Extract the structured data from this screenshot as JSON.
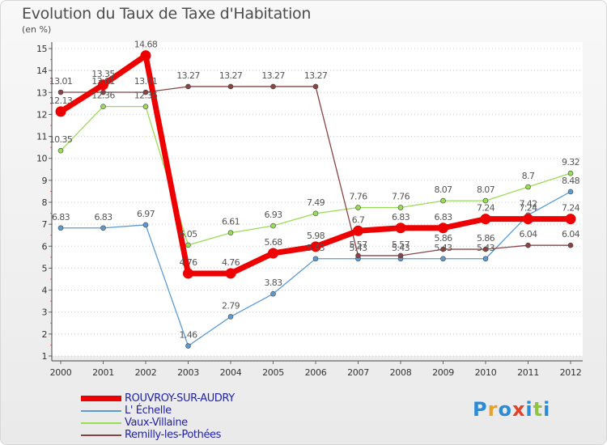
{
  "header": {
    "title": "Evolution du Taux de Taxe d'Habitation",
    "subtitle": "(en %)"
  },
  "logo": {
    "text": "Proxiti",
    "colors": [
      "#2a8bd9",
      "#e8a12a",
      "#2a8bd9",
      "#e0432a",
      "#2a8bd9",
      "#8cc63f",
      "#2a8bd9"
    ]
  },
  "chart_data": {
    "type": "line",
    "title": "Evolution du Taux de Taxe d'Habitation",
    "subtitle": "(en %)",
    "xlabel": "",
    "ylabel": "",
    "x": [
      "2000",
      "2001",
      "2002",
      "2003",
      "2004",
      "2005",
      "2006",
      "2007",
      "2008",
      "2009",
      "2010",
      "2011",
      "2012"
    ],
    "ylim": [
      1,
      15
    ],
    "yticks": [
      "1",
      "2",
      "3",
      "4",
      "5",
      "6",
      "7",
      "8",
      "9",
      "10",
      "11",
      "12",
      "13",
      "14",
      "15"
    ],
    "grid": "horizontal-dotted",
    "legend_position": "bottom-left",
    "series": [
      {
        "name": "ROUVROY-SUR-AUDRY",
        "color": "#ee0000",
        "values": [
          12.13,
          13.35,
          14.68,
          4.76,
          4.76,
          5.68,
          5.98,
          6.7,
          6.83,
          6.83,
          7.24,
          7.24,
          7.24
        ],
        "labels": [
          "12.13",
          "13.35",
          "14.68",
          "4.76",
          "4.76",
          "5.68",
          "5.98",
          "6.7",
          "6.83",
          "6.83",
          "7.24",
          "7.24",
          "7.24"
        ]
      },
      {
        "name": "L' Échelle",
        "color": "#5b9bd5",
        "values": [
          6.83,
          6.83,
          6.97,
          1.46,
          2.79,
          3.83,
          5.43,
          5.43,
          5.43,
          5.43,
          5.43,
          7.42,
          8.48
        ],
        "labels": [
          "6.83",
          "6.83",
          "6.97",
          "1.46",
          "2.79",
          "3.83",
          "5.43",
          "5.43",
          "5.43",
          "5.43",
          "5.43",
          "7.42",
          "8.48"
        ]
      },
      {
        "name": "Vaux-Villaine",
        "color": "#99dd55",
        "values": [
          10.35,
          12.36,
          12.36,
          6.05,
          6.61,
          6.93,
          7.49,
          7.76,
          7.76,
          8.07,
          8.07,
          8.7,
          9.32
        ],
        "labels": [
          "10.35",
          "12.36",
          "12.36",
          "6.05",
          "6.61",
          "6.93",
          "7.49",
          "7.76",
          "7.76",
          "8.07",
          "8.07",
          "8.7",
          "9.32"
        ]
      },
      {
        "name": "Remilly-les-Pothées",
        "color": "#884444",
        "values": [
          13.01,
          13.01,
          13.01,
          13.27,
          13.27,
          13.27,
          13.27,
          5.57,
          5.57,
          5.86,
          5.86,
          6.04,
          6.04
        ],
        "labels": [
          "13.01",
          "13.01",
          "13.01",
          "13.27",
          "13.27",
          "13.27",
          "13.27",
          "5.57",
          "5.57",
          "5.86",
          "5.86",
          "6.04",
          "6.04"
        ]
      }
    ]
  }
}
